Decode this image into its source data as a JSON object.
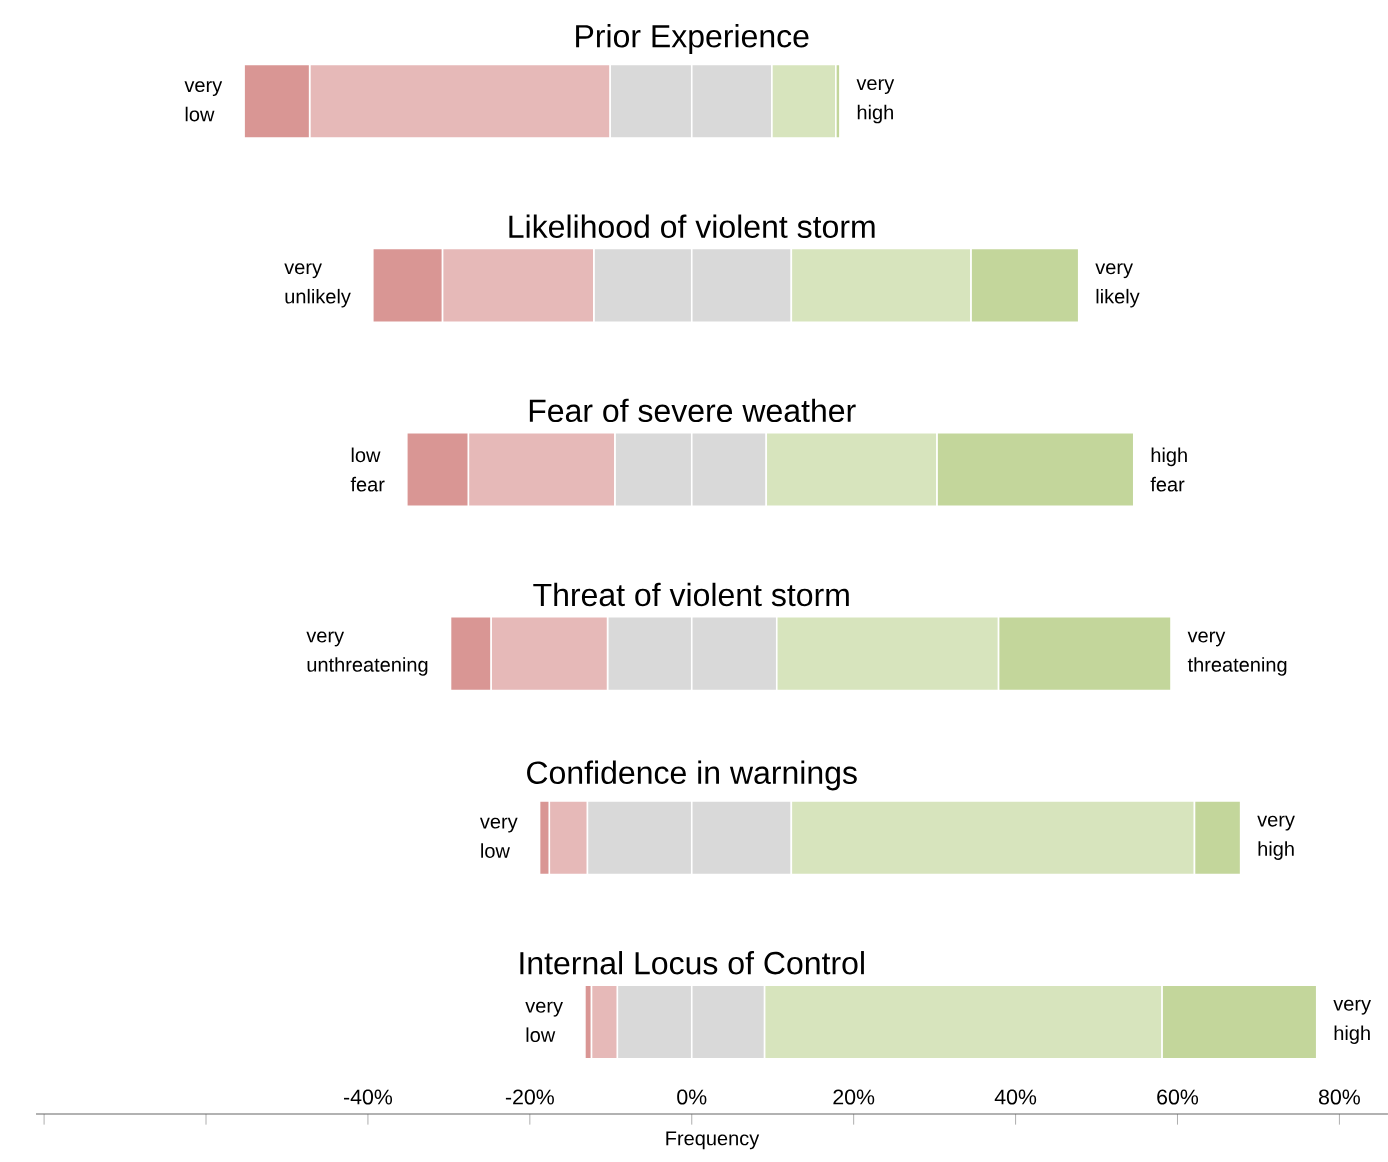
{
  "chart_data": {
    "type": "bar",
    "orientation": "horizontal",
    "stacked": true,
    "xlabel": "Frequency",
    "categories": [
      "Prior Experience",
      "Likelihood of violent storm",
      "Fear of severe weather",
      "Threat of violent storm",
      "Confidence in warnings",
      "Internal Locus of Control"
    ],
    "series": [
      {
        "color": "#d9d9d9",
        "values": [
          -10.1,
          -12.1,
          -9.5,
          -10.4,
          -12.9,
          -9.2
        ]
      },
      {
        "color": "#e6b9b8",
        "values": [
          -37.1,
          -18.7,
          -18.1,
          -14.4,
          -4.7,
          -3.2
        ]
      },
      {
        "color": "#d99694",
        "values": [
          -8.1,
          -8.6,
          -7.6,
          -5.0,
          -1.2,
          -0.8
        ]
      },
      {
        "color": "#d9d9d9",
        "values": [
          9.9,
          12.3,
          9.2,
          10.5,
          12.3,
          9.0
        ]
      },
      {
        "color": "#d7e4bd",
        "values": [
          7.9,
          22.2,
          21.1,
          27.4,
          49.8,
          49.1
        ]
      },
      {
        "color": "#c3d69b",
        "values": [
          0.5,
          13.3,
          24.3,
          21.3,
          5.7,
          19.1
        ]
      }
    ],
    "xlim": [
      -81,
      86
    ],
    "xticks": [
      {
        "value": -80,
        "label": null
      },
      {
        "value": -60,
        "label": null
      },
      {
        "value": -40,
        "label": "-40%"
      },
      {
        "value": -20,
        "label": "-20%"
      },
      {
        "value": 0,
        "label": "0%"
      },
      {
        "value": 20,
        "label": "20%"
      },
      {
        "value": 40,
        "label": "40%"
      },
      {
        "value": 60,
        "label": "60%"
      },
      {
        "value": 80,
        "label": "80%"
      }
    ],
    "annotations": [
      {
        "text": "very low",
        "x": -55.3,
        "y": "Prior Experience"
      },
      {
        "text": "very high",
        "x": 18.3,
        "y": "Prior Experience"
      },
      {
        "text": "very unlikely",
        "x": -39.4,
        "y": "Likelihood of violent storm"
      },
      {
        "text": "very likely",
        "x": 47.8,
        "y": "Likelihood of violent storm"
      },
      {
        "text": "low fear",
        "x": -35.2,
        "y": "Fear of severe weather"
      },
      {
        "text": "high fear",
        "x": 54.6,
        "y": "Fear of severe weather"
      },
      {
        "text": "very unthreatening",
        "x": -29.8,
        "y": "Threat of violent storm"
      },
      {
        "text": "very threatening",
        "x": 59.2,
        "y": "Threat of violent storm"
      },
      {
        "text": "very low",
        "x": -18.8,
        "y": "Confidence in warnings"
      },
      {
        "text": "very high",
        "x": 67.8,
        "y": "Confidence in warnings"
      },
      {
        "text": "very low",
        "x": -13.2,
        "y": "Internal Locus of Control"
      },
      {
        "text": "very high",
        "x": 77.2,
        "y": "Internal Locus of Control"
      }
    ]
  }
}
